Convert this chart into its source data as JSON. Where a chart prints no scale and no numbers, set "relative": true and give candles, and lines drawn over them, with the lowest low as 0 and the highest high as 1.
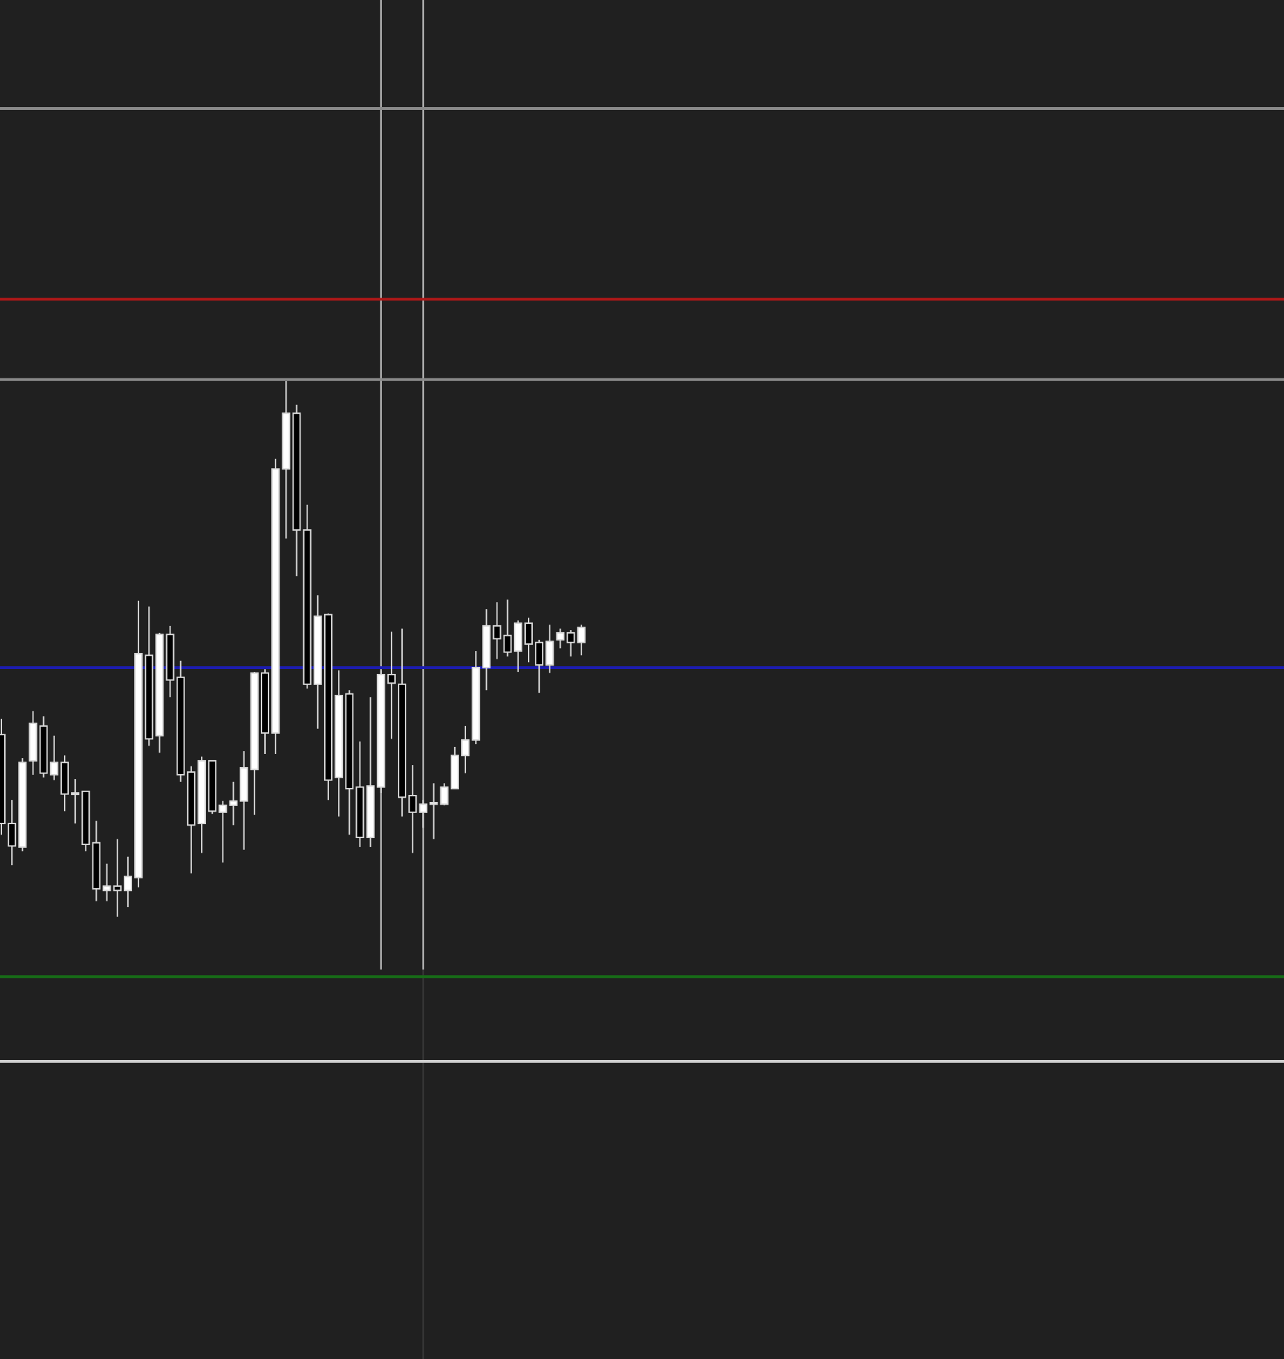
{
  "chart_data": {
    "type": "candlestick",
    "relative": true,
    "categories": [
      null,
      null,
      null,
      null,
      null,
      null,
      null,
      null,
      null,
      null,
      null,
      null,
      null,
      null,
      null,
      null,
      null,
      null,
      null,
      null,
      null,
      null,
      null,
      null,
      null,
      null,
      null,
      null,
      null,
      null,
      null,
      null,
      null,
      null,
      null,
      null,
      null,
      null,
      null,
      null,
      null,
      null,
      null,
      null,
      null,
      null,
      null,
      null,
      null,
      null,
      null,
      null,
      null,
      null,
      null,
      null,
      null,
      null,
      null,
      null,
      null,
      null,
      null,
      null,
      null,
      null,
      null,
      null,
      null,
      null,
      null,
      null,
      null,
      null,
      null,
      null,
      null,
      null,
      null,
      null,
      null,
      null,
      null,
      null,
      null,
      null,
      null,
      null,
      null,
      null,
      null,
      null,
      null,
      null,
      null,
      null,
      null,
      null,
      null,
      null,
      null,
      null,
      null,
      null,
      null,
      null,
      null,
      null,
      null,
      null,
      null,
      null,
      null,
      null,
      null,
      null,
      null,
      null,
      null,
      null,
      null
    ],
    "ohlc": [
      [
        0.34,
        0.369,
        0.153,
        0.174
      ],
      [
        0.174,
        0.218,
        0.096,
        0.132
      ],
      [
        0.13,
        0.296,
        0.122,
        0.288
      ],
      [
        0.291,
        0.384,
        0.265,
        0.361
      ],
      [
        0.356,
        0.374,
        0.26,
        0.268
      ],
      [
        0.265,
        0.338,
        0.255,
        0.288
      ],
      [
        0.288,
        0.301,
        0.197,
        0.229
      ],
      [
        0.231,
        0.257,
        0.174,
        0.229
      ],
      [
        0.234,
        0.234,
        0.122,
        0.135
      ],
      [
        0.138,
        0.179,
        0.029,
        0.052
      ],
      [
        0.049,
        0.099,
        0.029,
        0.057
      ],
      [
        0.057,
        0.145,
        0,
        0.049
      ],
      [
        0.049,
        0.112,
        0.018,
        0.075
      ],
      [
        0.073,
        0.59,
        0.055,
        0.491
      ],
      [
        0.488,
        0.579,
        0.319,
        0.332
      ],
      [
        0.338,
        0.53,
        0.306,
        0.527
      ],
      [
        0.527,
        0.543,
        0.41,
        0.442
      ],
      [
        0.447,
        0.478,
        0.252,
        0.265
      ],
      [
        0.27,
        0.281,
        0.081,
        0.171
      ],
      [
        0.174,
        0.299,
        0.119,
        0.291
      ],
      [
        0.291,
        0.291,
        0.192,
        0.197
      ],
      [
        0.195,
        0.216,
        0.101,
        0.208
      ],
      [
        0.208,
        0.252,
        0.171,
        0.216
      ],
      [
        0.216,
        0.309,
        0.125,
        0.278
      ],
      [
        0.275,
        0.457,
        0.19,
        0.455
      ],
      [
        0.455,
        0.462,
        0.304,
        0.343
      ],
      [
        0.343,
        0.855,
        0.304,
        0.836
      ],
      [
        0.836,
        1,
        0.706,
        0.94
      ],
      [
        0.94,
        0.956,
        0.636,
        0.722
      ],
      [
        0.722,
        0.769,
        0.426,
        0.434
      ],
      [
        0.434,
        0.6,
        0.351,
        0.561
      ],
      [
        0.564,
        0.566,
        0.218,
        0.255
      ],
      [
        0.26,
        0.46,
        0.187,
        0.413
      ],
      [
        0.416,
        0.423,
        0.153,
        0.239
      ],
      [
        0.242,
        0.327,
        0.13,
        0.148
      ],
      [
        0.148,
        0.41,
        0.13,
        0.244
      ],
      [
        0.242,
        0.46,
        0.231,
        0.452
      ],
      [
        0.452,
        0.532,
        0.332,
        0.436
      ],
      [
        0.434,
        0.538,
        0.187,
        0.223
      ],
      [
        0.226,
        0.283,
        0.119,
        0.195
      ],
      [
        0.195,
        0.218,
        0.166,
        0.21
      ],
      [
        0.21,
        0.249,
        0.145,
        0.213
      ],
      [
        0.21,
        0.249,
        0.208,
        0.242
      ],
      [
        0.239,
        0.317,
        0.239,
        0.301
      ],
      [
        0.301,
        0.356,
        0.268,
        0.33
      ],
      [
        0.33,
        0.496,
        0.322,
        0.465
      ],
      [
        0.465,
        0.574,
        0.423,
        0.543
      ],
      [
        0.543,
        0.587,
        0.481,
        0.519
      ],
      [
        0.525,
        0.592,
        0.486,
        0.494
      ],
      [
        0.496,
        0.553,
        0.457,
        0.548
      ],
      [
        0.548,
        0.558,
        0.475,
        0.509
      ],
      [
        0.512,
        0.517,
        0.418,
        0.47
      ],
      [
        0.47,
        0.545,
        0.455,
        0.514
      ],
      [
        0.517,
        0.538,
        0.501,
        0.53
      ],
      [
        0.53,
        0.535,
        0.486,
        0.512
      ],
      [
        0.512,
        0.545,
        0.488,
        0.54
      ],
      null,
      null,
      null,
      null,
      null,
      null,
      null,
      null,
      null,
      null,
      null,
      null,
      null,
      null,
      null,
      null,
      null,
      null,
      null,
      null,
      null,
      null,
      null,
      null,
      null,
      null,
      null,
      null,
      null,
      null,
      null,
      null,
      null,
      null,
      null,
      null,
      null,
      null,
      null,
      null,
      null,
      null,
      null,
      null,
      null,
      null,
      null,
      null,
      null,
      null,
      null,
      null,
      null,
      null,
      null,
      null,
      null,
      null,
      null,
      null,
      null,
      null,
      null,
      null,
      null
    ],
    "ref_lines": [
      {
        "axis": "y",
        "value": 1.509,
        "color": "#8a8a8a"
      },
      {
        "axis": "y",
        "value": 1.153,
        "color": "#b01818"
      },
      {
        "axis": "y",
        "value": 1.003,
        "color": "#8a8a8a"
      },
      {
        "axis": "y",
        "value": 0.465,
        "color": "#1c1cb0"
      },
      {
        "axis": "y",
        "value": -0.112,
        "color": "#176b17"
      },
      {
        "axis": "y",
        "value": -0.27,
        "color": "#d0d0d0"
      }
    ]
  }
}
